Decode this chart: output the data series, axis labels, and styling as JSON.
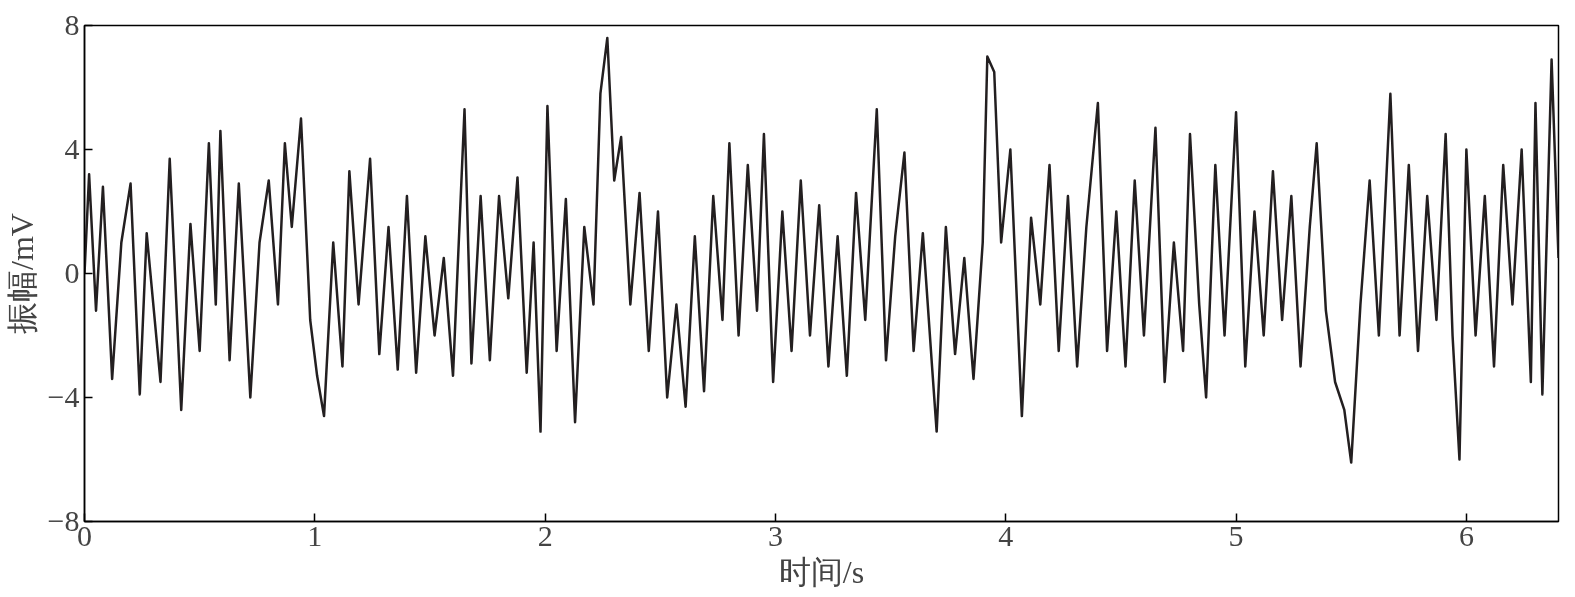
{
  "chart_data": {
    "type": "line",
    "xlabel": "时间/s",
    "ylabel": "振幅/mV",
    "xlim": [
      0,
      6.4
    ],
    "ylim": [
      -8,
      8
    ],
    "xticks": [
      0,
      1,
      2,
      3,
      4,
      5,
      6
    ],
    "yticks": [
      {
        "value": -8,
        "label": "−8"
      },
      {
        "value": -4,
        "label": "−4"
      },
      0,
      4,
      8
    ],
    "grid": false,
    "marker": "none",
    "line_style": "solid",
    "series": [
      {
        "color": "#231f20",
        "x": [
          0,
          0.02,
          0.05,
          0.08,
          0.12,
          0.16,
          0.2,
          0.24,
          0.27,
          0.33,
          0.37,
          0.42,
          0.46,
          0.5,
          0.54,
          0.57,
          0.59,
          0.63,
          0.67,
          0.72,
          0.76,
          0.8,
          0.84,
          0.87,
          0.9,
          0.94,
          0.98,
          1.01,
          1.04,
          1.08,
          1.12,
          1.15,
          1.19,
          1.24,
          1.28,
          1.32,
          1.36,
          1.4,
          1.44,
          1.48,
          1.52,
          1.56,
          1.6,
          1.65,
          1.68,
          1.72,
          1.76,
          1.8,
          1.84,
          1.88,
          1.92,
          1.95,
          1.98,
          2.01,
          2.05,
          2.09,
          2.13,
          2.17,
          2.21,
          2.24,
          2.27,
          2.3,
          2.33,
          2.37,
          2.41,
          2.45,
          2.49,
          2.53,
          2.57,
          2.61,
          2.65,
          2.69,
          2.73,
          2.77,
          2.8,
          2.84,
          2.88,
          2.92,
          2.95,
          2.99,
          3.03,
          3.07,
          3.11,
          3.15,
          3.19,
          3.23,
          3.27,
          3.31,
          3.35,
          3.39,
          3.44,
          3.48,
          3.52,
          3.56,
          3.6,
          3.64,
          3.68,
          3.7,
          3.74,
          3.78,
          3.82,
          3.86,
          3.9,
          3.92,
          3.95,
          3.98,
          4.02,
          4.07,
          4.11,
          4.15,
          4.19,
          4.23,
          4.27,
          4.31,
          4.35,
          4.4,
          4.44,
          4.48,
          4.52,
          4.56,
          4.6,
          4.65,
          4.69,
          4.73,
          4.77,
          4.8,
          4.84,
          4.87,
          4.91,
          4.95,
          5.0,
          5.04,
          5.08,
          5.12,
          5.16,
          5.2,
          5.24,
          5.28,
          5.32,
          5.35,
          5.39,
          5.43,
          5.47,
          5.5,
          5.54,
          5.58,
          5.62,
          5.67,
          5.71,
          5.75,
          5.79,
          5.83,
          5.87,
          5.91,
          5.94,
          5.97,
          6.0,
          6.04,
          6.08,
          6.12,
          6.16,
          6.2,
          6.24,
          6.28,
          6.3,
          6.33,
          6.37,
          6.4
        ],
        "values": [
          0,
          3.2,
          -1.2,
          2.8,
          -3.4,
          1.0,
          2.9,
          -3.9,
          1.3,
          -3.5,
          3.7,
          -4.4,
          1.6,
          -2.5,
          4.2,
          -1.0,
          4.6,
          -2.8,
          2.9,
          -4.0,
          1.0,
          3.0,
          -1.0,
          4.2,
          1.5,
          5.0,
          -1.5,
          -3.3,
          -4.6,
          1.0,
          -3.0,
          3.3,
          -1.0,
          3.7,
          -2.6,
          1.5,
          -3.1,
          2.5,
          -3.2,
          1.2,
          -2.0,
          0.5,
          -3.3,
          5.3,
          -2.9,
          2.5,
          -2.8,
          2.5,
          -0.8,
          3.1,
          -3.2,
          1.0,
          -5.1,
          5.4,
          -2.5,
          2.4,
          -4.8,
          1.5,
          -1.0,
          5.8,
          7.6,
          3.0,
          4.4,
          -1.0,
          2.6,
          -2.5,
          2.0,
          -4.0,
          -1.0,
          -4.3,
          1.2,
          -3.8,
          2.5,
          -1.5,
          4.2,
          -2.0,
          3.5,
          -1.2,
          4.5,
          -3.5,
          2.0,
          -2.5,
          3.0,
          -2.0,
          2.2,
          -3.0,
          1.2,
          -3.3,
          2.6,
          -1.5,
          5.3,
          -2.8,
          1.2,
          3.9,
          -2.5,
          1.3,
          -3.0,
          -5.1,
          1.5,
          -2.6,
          0.5,
          -3.4,
          1.0,
          7.0,
          6.5,
          1.0,
          4.0,
          -4.6,
          1.8,
          -1.0,
          3.5,
          -2.5,
          2.5,
          -3.0,
          1.5,
          5.5,
          -2.5,
          2.0,
          -3.0,
          3.0,
          -2.0,
          4.7,
          -3.5,
          1.0,
          -2.5,
          4.5,
          -1.0,
          -4.0,
          3.5,
          -2.0,
          5.2,
          -3.0,
          2.0,
          -2.0,
          3.3,
          -1.5,
          2.5,
          -3.0,
          1.5,
          4.2,
          -1.2,
          -3.5,
          -4.4,
          -6.1,
          -1.0,
          3.0,
          -2.0,
          5.8,
          -2.0,
          3.5,
          -2.5,
          2.5,
          -1.5,
          4.5,
          -2.0,
          -6.0,
          4.0,
          -2.0,
          2.5,
          -3.0,
          3.5,
          -1.0,
          4.0,
          -3.5,
          5.5,
          -3.9,
          6.9,
          0.5
        ]
      }
    ]
  }
}
